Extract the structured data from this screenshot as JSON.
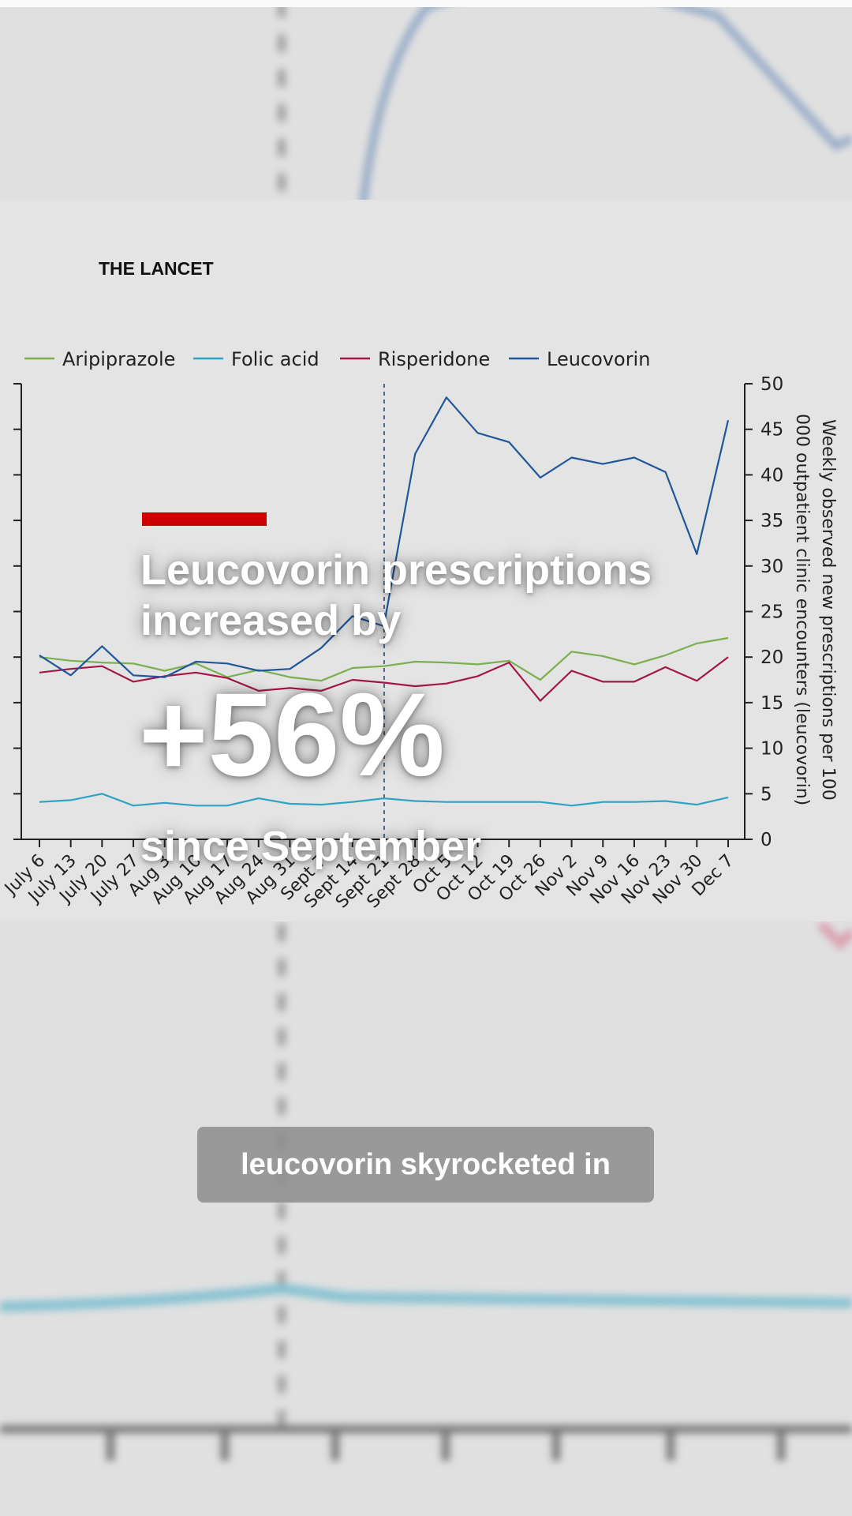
{
  "overlay": {
    "brand": "THE LANCET",
    "headline": "Leucovorin prescriptions increased by",
    "big_number": "+56%",
    "subhead": "since September",
    "caption": "leucovorin skyrocketed in"
  },
  "chart_data": {
    "type": "line",
    "y2label": "Weekly observed new prescriptions per 100 000 outpatient clinic encounters (leucovorin)",
    "categories": [
      "July 6",
      "July 13",
      "July 20",
      "July 27",
      "Aug 3",
      "Aug 10",
      "Aug 17",
      "Aug 24",
      "Aug 31",
      "Sept 7",
      "Sept 14",
      "Sept 21",
      "Sept 28",
      "Oct 5",
      "Oct 12",
      "Oct 19",
      "Oct 26",
      "Nov 2",
      "Nov 9",
      "Nov 16",
      "Nov 23",
      "Nov 30",
      "Dec 7"
    ],
    "series": [
      {
        "name": "Aripiprazole",
        "color": "#7ab04f",
        "values": [
          20.0,
          19.6,
          19.4,
          19.3,
          18.5,
          19.3,
          17.8,
          18.6,
          17.8,
          17.4,
          18.8,
          19.0,
          19.5,
          19.4,
          19.2,
          19.6,
          17.5,
          20.6,
          20.1,
          19.2,
          20.2,
          21.5,
          22.1
        ]
      },
      {
        "name": "Folic acid",
        "color": "#2ea3c4",
        "values": [
          4.1,
          4.3,
          5.0,
          3.7,
          4.0,
          3.7,
          3.7,
          4.5,
          3.9,
          3.8,
          4.1,
          4.5,
          4.2,
          4.1,
          4.1,
          4.1,
          4.1,
          3.7,
          4.1,
          4.1,
          4.2,
          3.8,
          4.6
        ]
      },
      {
        "name": "Risperidone",
        "color": "#a3174a",
        "values": [
          18.3,
          18.7,
          19.0,
          17.3,
          17.9,
          18.3,
          17.7,
          16.3,
          16.6,
          16.3,
          17.5,
          17.2,
          16.8,
          17.1,
          17.9,
          19.4,
          15.2,
          18.5,
          17.3,
          17.3,
          18.9,
          17.4,
          20.0
        ]
      },
      {
        "name": "Leucovorin",
        "color": "#1f5799",
        "values": [
          20.2,
          18.0,
          21.2,
          18.0,
          17.8,
          19.5,
          19.3,
          18.5,
          18.7,
          21.0,
          24.5,
          23.4,
          42.3,
          48.5,
          44.6,
          43.6,
          39.7,
          41.9,
          41.2,
          41.9,
          40.3,
          31.3,
          46.0
        ]
      }
    ],
    "ylim": [
      0,
      50
    ],
    "yticks": [
      0,
      5,
      10,
      15,
      20,
      25,
      30,
      35,
      40,
      45,
      50
    ]
  }
}
